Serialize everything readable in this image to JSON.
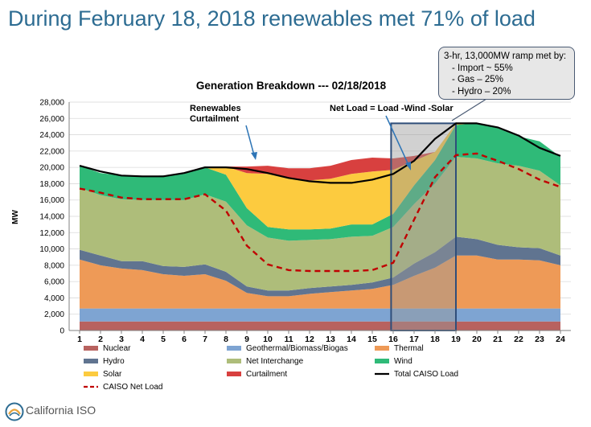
{
  "headline": "During February 18, 2018 renewables met 71% of load",
  "callout": {
    "title": "3-hr, 13,000MW ramp met by:",
    "items": [
      "-  Import ~ 55%",
      "-  Gas – 25%",
      "-  Hydro – 20%"
    ]
  },
  "annotations": {
    "curtailment_line1": "Renewables",
    "curtailment_line2": "Curtailment",
    "net_load": "Net Load = Load -Wind -Solar"
  },
  "logo_text": "California ISO",
  "chart_data": {
    "type": "area",
    "title": "Generation Breakdown --- 02/18/2018",
    "xlabel": "",
    "ylabel": "MW",
    "x": [
      1,
      2,
      3,
      4,
      5,
      6,
      7,
      8,
      9,
      10,
      11,
      12,
      13,
      14,
      15,
      16,
      17,
      18,
      19,
      20,
      21,
      22,
      23,
      24
    ],
    "xlim": [
      0.5,
      24.5
    ],
    "ylim": [
      0,
      28000
    ],
    "yticks": [
      0,
      2000,
      4000,
      6000,
      8000,
      10000,
      12000,
      14000,
      16000,
      18000,
      20000,
      22000,
      24000,
      26000,
      28000
    ],
    "ytick_labels": [
      "0",
      "2,000",
      "4,000",
      "6,000",
      "8,000",
      "10,000",
      "12,000",
      "14,000",
      "16,000",
      "18,000",
      "20,000",
      "22,000",
      "24,000",
      "26,000",
      "28,000"
    ],
    "grid": "horizontal",
    "series": [
      {
        "name": "Nuclear",
        "color": "#b8625f",
        "values": [
          1100,
          1100,
          1100,
          1100,
          1100,
          1100,
          1100,
          1100,
          1100,
          1100,
          1100,
          1100,
          1100,
          1100,
          1100,
          1100,
          1100,
          1100,
          1100,
          1100,
          1100,
          1100,
          1100,
          1100
        ]
      },
      {
        "name": "Geothermal/Biomass/Biogas",
        "color": "#7ea4d2",
        "values": [
          1600,
          1600,
          1600,
          1600,
          1600,
          1600,
          1600,
          1600,
          1600,
          1600,
          1600,
          1600,
          1600,
          1600,
          1600,
          1600,
          1600,
          1600,
          1600,
          1600,
          1600,
          1600,
          1600,
          1600
        ]
      },
      {
        "name": "Thermal",
        "color": "#ee9a57",
        "values": [
          6000,
          5300,
          4900,
          4700,
          4200,
          4000,
          4200,
          3400,
          1900,
          1500,
          1500,
          1800,
          2000,
          2200,
          2400,
          2900,
          4000,
          5000,
          6500,
          6500,
          6000,
          6000,
          5900,
          5300
        ]
      },
      {
        "name": "Hydro",
        "color": "#607490",
        "values": [
          1200,
          1200,
          900,
          1100,
          1000,
          1100,
          1200,
          1100,
          800,
          700,
          700,
          700,
          700,
          700,
          800,
          900,
          1500,
          1900,
          2300,
          2000,
          1800,
          1500,
          1500,
          1200
        ]
      },
      {
        "name": "Net Interchange",
        "color": "#aebd7a",
        "values": [
          7600,
          7400,
          7600,
          7500,
          8100,
          8200,
          8600,
          8600,
          7500,
          6500,
          6100,
          5900,
          5800,
          5900,
          5700,
          6200,
          7300,
          8400,
          9800,
          9900,
          10000,
          10000,
          9500,
          8600
        ]
      },
      {
        "name": "Wind",
        "color": "#2fba78",
        "values": [
          2700,
          2700,
          2900,
          2900,
          3000,
          3200,
          3300,
          3300,
          2100,
          1300,
          1400,
          1300,
          1300,
          1500,
          1400,
          1600,
          2300,
          2900,
          3900,
          4300,
          4300,
          3600,
          3600,
          3500
        ]
      },
      {
        "name": "Solar",
        "color": "#fccb3f",
        "values": [
          0,
          0,
          0,
          0,
          0,
          0,
          0,
          1000,
          4300,
          6500,
          6200,
          6000,
          6100,
          6200,
          6500,
          5400,
          3000,
          1000,
          200,
          0,
          0,
          0,
          0,
          0
        ]
      },
      {
        "name": "Curtailment",
        "color": "#d8403f",
        "values": [
          0,
          0,
          0,
          0,
          0,
          0,
          0,
          0,
          800,
          1000,
          1300,
          1500,
          1600,
          1700,
          1700,
          1400,
          600,
          0,
          0,
          0,
          0,
          0,
          0,
          0
        ]
      }
    ],
    "lines": [
      {
        "name": "Total CAISO Load",
        "color": "#000000",
        "style": "solid",
        "values": [
          20200,
          19500,
          19000,
          18900,
          18900,
          19300,
          20000,
          20000,
          19800,
          19300,
          18700,
          18300,
          18100,
          18100,
          18500,
          19200,
          20800,
          23500,
          25400,
          25400,
          24900,
          23900,
          22400,
          21400
        ]
      },
      {
        "name": "CAISO Net Load",
        "color": "#c00000",
        "style": "dashed",
        "values": [
          17400,
          16900,
          16300,
          16100,
          16100,
          16100,
          16700,
          14700,
          10400,
          8100,
          7400,
          7300,
          7300,
          7300,
          7400,
          8300,
          13600,
          18800,
          21500,
          21700,
          20800,
          19800,
          18500,
          17600
        ]
      }
    ],
    "highlight_box": {
      "x_start": 15.9,
      "x_end": 19.0,
      "y_top": 25400
    },
    "legend": {
      "placement": "bottom",
      "entries": [
        {
          "name": "Nuclear",
          "color": "#b8625f",
          "kind": "swatch"
        },
        {
          "name": "Geothermal/Biomass/Biogas",
          "color": "#7ea4d2",
          "kind": "swatch"
        },
        {
          "name": "Thermal",
          "color": "#ee9a57",
          "kind": "swatch"
        },
        {
          "name": "Hydro",
          "color": "#607490",
          "kind": "swatch"
        },
        {
          "name": "Net Interchange",
          "color": "#aebd7a",
          "kind": "swatch"
        },
        {
          "name": "Wind",
          "color": "#2fba78",
          "kind": "swatch"
        },
        {
          "name": "Solar",
          "color": "#fccb3f",
          "kind": "swatch"
        },
        {
          "name": "Curtailment",
          "color": "#d8403f",
          "kind": "swatch"
        },
        {
          "name": "Total CAISO Load",
          "color": "#000000",
          "kind": "line"
        },
        {
          "name": "CAISO Net Load",
          "color": "#c00000",
          "kind": "dashed"
        }
      ]
    }
  }
}
